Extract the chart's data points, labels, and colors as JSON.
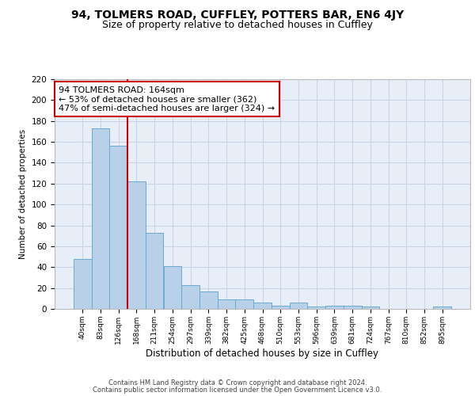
{
  "title1": "94, TOLMERS ROAD, CUFFLEY, POTTERS BAR, EN6 4JY",
  "title2": "Size of property relative to detached houses in Cuffley",
  "xlabel": "Distribution of detached houses by size in Cuffley",
  "ylabel": "Number of detached properties",
  "categories": [
    "40sqm",
    "83sqm",
    "126sqm",
    "168sqm",
    "211sqm",
    "254sqm",
    "297sqm",
    "339sqm",
    "382sqm",
    "425sqm",
    "468sqm",
    "510sqm",
    "553sqm",
    "596sqm",
    "639sqm",
    "681sqm",
    "724sqm",
    "767sqm",
    "810sqm",
    "852sqm",
    "895sqm"
  ],
  "values": [
    48,
    173,
    156,
    122,
    73,
    41,
    23,
    17,
    9,
    9,
    6,
    3,
    6,
    2,
    3,
    3,
    2,
    0,
    0,
    0,
    2
  ],
  "bar_color": "#b8d0e8",
  "bar_edge_color": "#6aaad4",
  "background_color": "#e8eef8",
  "grid_color": "#c8d4e8",
  "red_line_x": 2.5,
  "annotation_text": "94 TOLMERS ROAD: 164sqm\n← 53% of detached houses are smaller (362)\n47% of semi-detached houses are larger (324) →",
  "annotation_box_color": "white",
  "annotation_border_color": "#cc0000",
  "ylim": [
    0,
    220
  ],
  "yticks": [
    0,
    20,
    40,
    60,
    80,
    100,
    120,
    140,
    160,
    180,
    200,
    220
  ],
  "footer_line1": "Contains HM Land Registry data © Crown copyright and database right 2024.",
  "footer_line2": "Contains public sector information licensed under the Open Government Licence v3.0.",
  "red_line_color": "#cc0000",
  "title_fontsize": 10,
  "subtitle_fontsize": 9,
  "annotation_fontsize": 8
}
